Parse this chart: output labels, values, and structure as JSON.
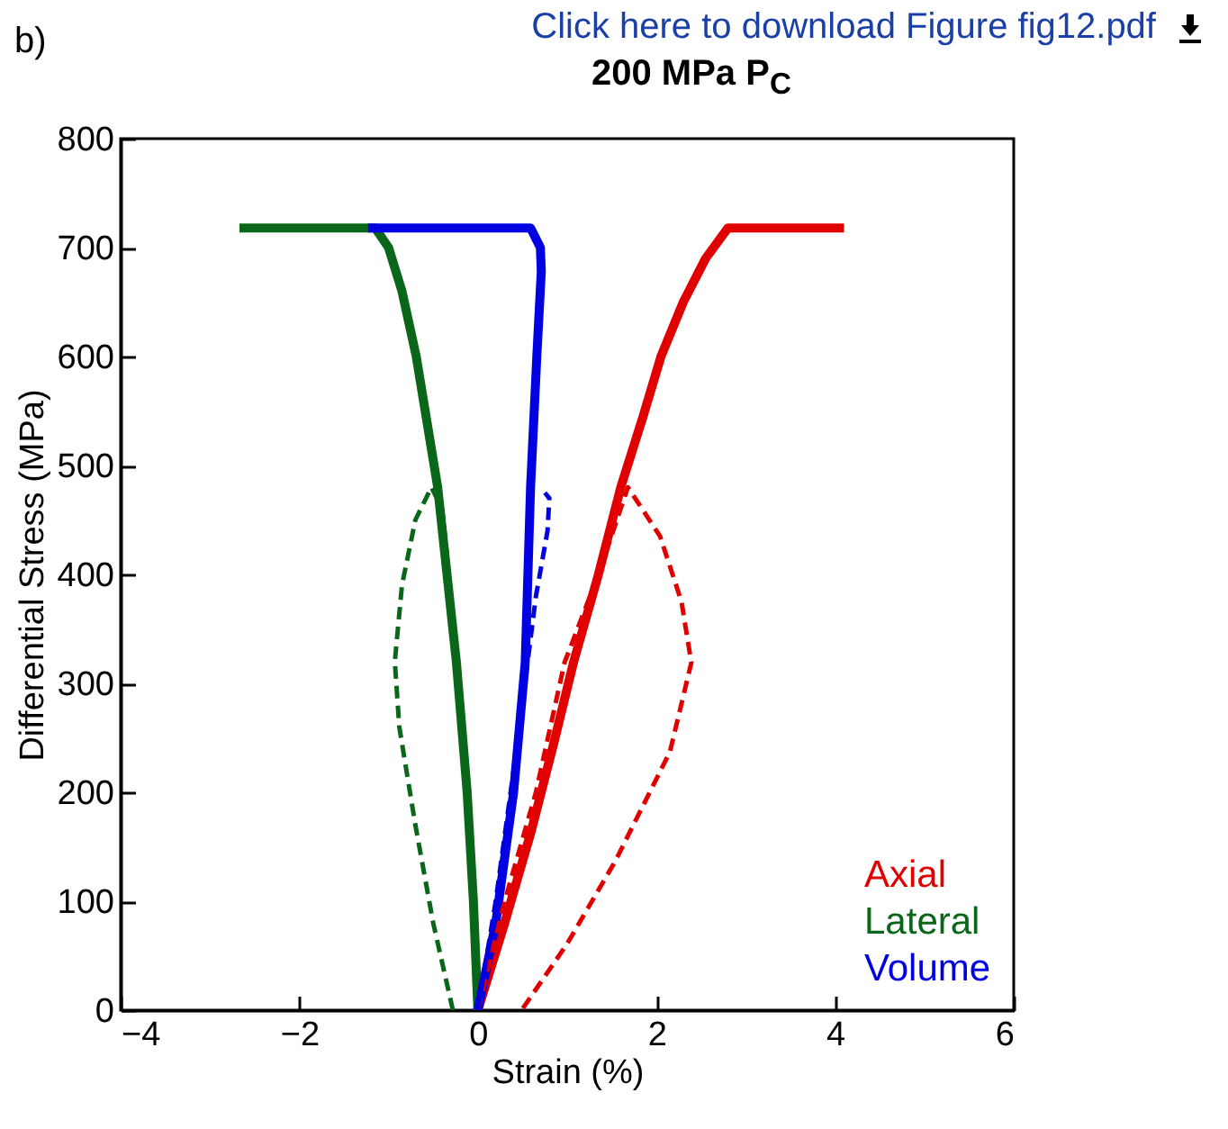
{
  "chart_data": {
    "type": "line",
    "title": "200 MPa P$_{C}$",
    "xlabel": "Strain (%)",
    "ylabel": "Differential Stress (MPa)",
    "annotations": [
      "b)",
      "Click here to download Figure fig12.pdf"
    ],
    "xlim": [
      -4,
      6
    ],
    "xticks": [
      -4,
      -2,
      0,
      2,
      4,
      6
    ],
    "ylim": [
      0,
      800
    ],
    "yticks": [
      0,
      100,
      200,
      300,
      400,
      500,
      600,
      700,
      800
    ],
    "grid": false,
    "legend": "bottom right",
    "marker": "none",
    "series": [
      {
        "name": "Axial",
        "color": "#e00000",
        "line_style": "solid",
        "x": [
          0,
          0.3,
          0.6,
          0.85,
          1.07,
          1.35,
          1.6,
          1.85,
          2.05,
          2.3,
          2.55,
          2.8,
          4.1
        ],
        "values": [
          0,
          80,
          165,
          245,
          319,
          400,
          480,
          545,
          600,
          650,
          690,
          718,
          718
        ]
      },
      {
        "name": "Lateral",
        "color": "#0a6618",
        "line_style": "solid",
        "x": [
          0,
          -0.05,
          -0.12,
          -0.24,
          -0.45,
          -0.69,
          -0.85,
          -1.0,
          -1.15,
          -2.67
        ],
        "values": [
          0,
          100,
          200,
          319,
          480,
          600,
          660,
          700,
          718,
          718
        ]
      },
      {
        "name": "Volume",
        "color": "#0000e0",
        "line_style": "solid",
        "x": [
          0,
          0.2,
          0.4,
          0.53,
          0.59,
          0.66,
          0.71,
          0.7,
          0.59,
          -1.23
        ],
        "values": [
          0,
          80,
          200,
          319,
          480,
          600,
          678,
          700,
          718,
          718
        ]
      },
      {
        "color": "#e00000",
        "line_style": "dashed",
        "x": [
          0,
          0.3,
          0.65,
          0.97,
          1.35,
          1.68,
          2.04,
          2.28,
          2.39,
          2.15,
          1.54,
          1.0,
          0.49
        ],
        "values": [
          0,
          100,
          200,
          319,
          400,
          480,
          435,
          375,
          319,
          237,
          137,
          61,
          0
        ]
      },
      {
        "color": "#0a6618",
        "line_style": "dashed",
        "x": [
          -0.28,
          -0.5,
          -0.7,
          -0.88,
          -0.93,
          -0.85,
          -0.7,
          -0.52,
          -0.4,
          -0.35
        ],
        "values": [
          0,
          80,
          170,
          260,
          320,
          390,
          450,
          480,
          460,
          420
        ]
      },
      {
        "color": "#0000e0",
        "line_style": "dashed",
        "x": [
          0,
          0.2,
          0.45,
          0.65,
          0.78,
          0.8,
          0.75
        ],
        "values": [
          0,
          100,
          250,
          380,
          440,
          470,
          475
        ]
      }
    ]
  }
}
